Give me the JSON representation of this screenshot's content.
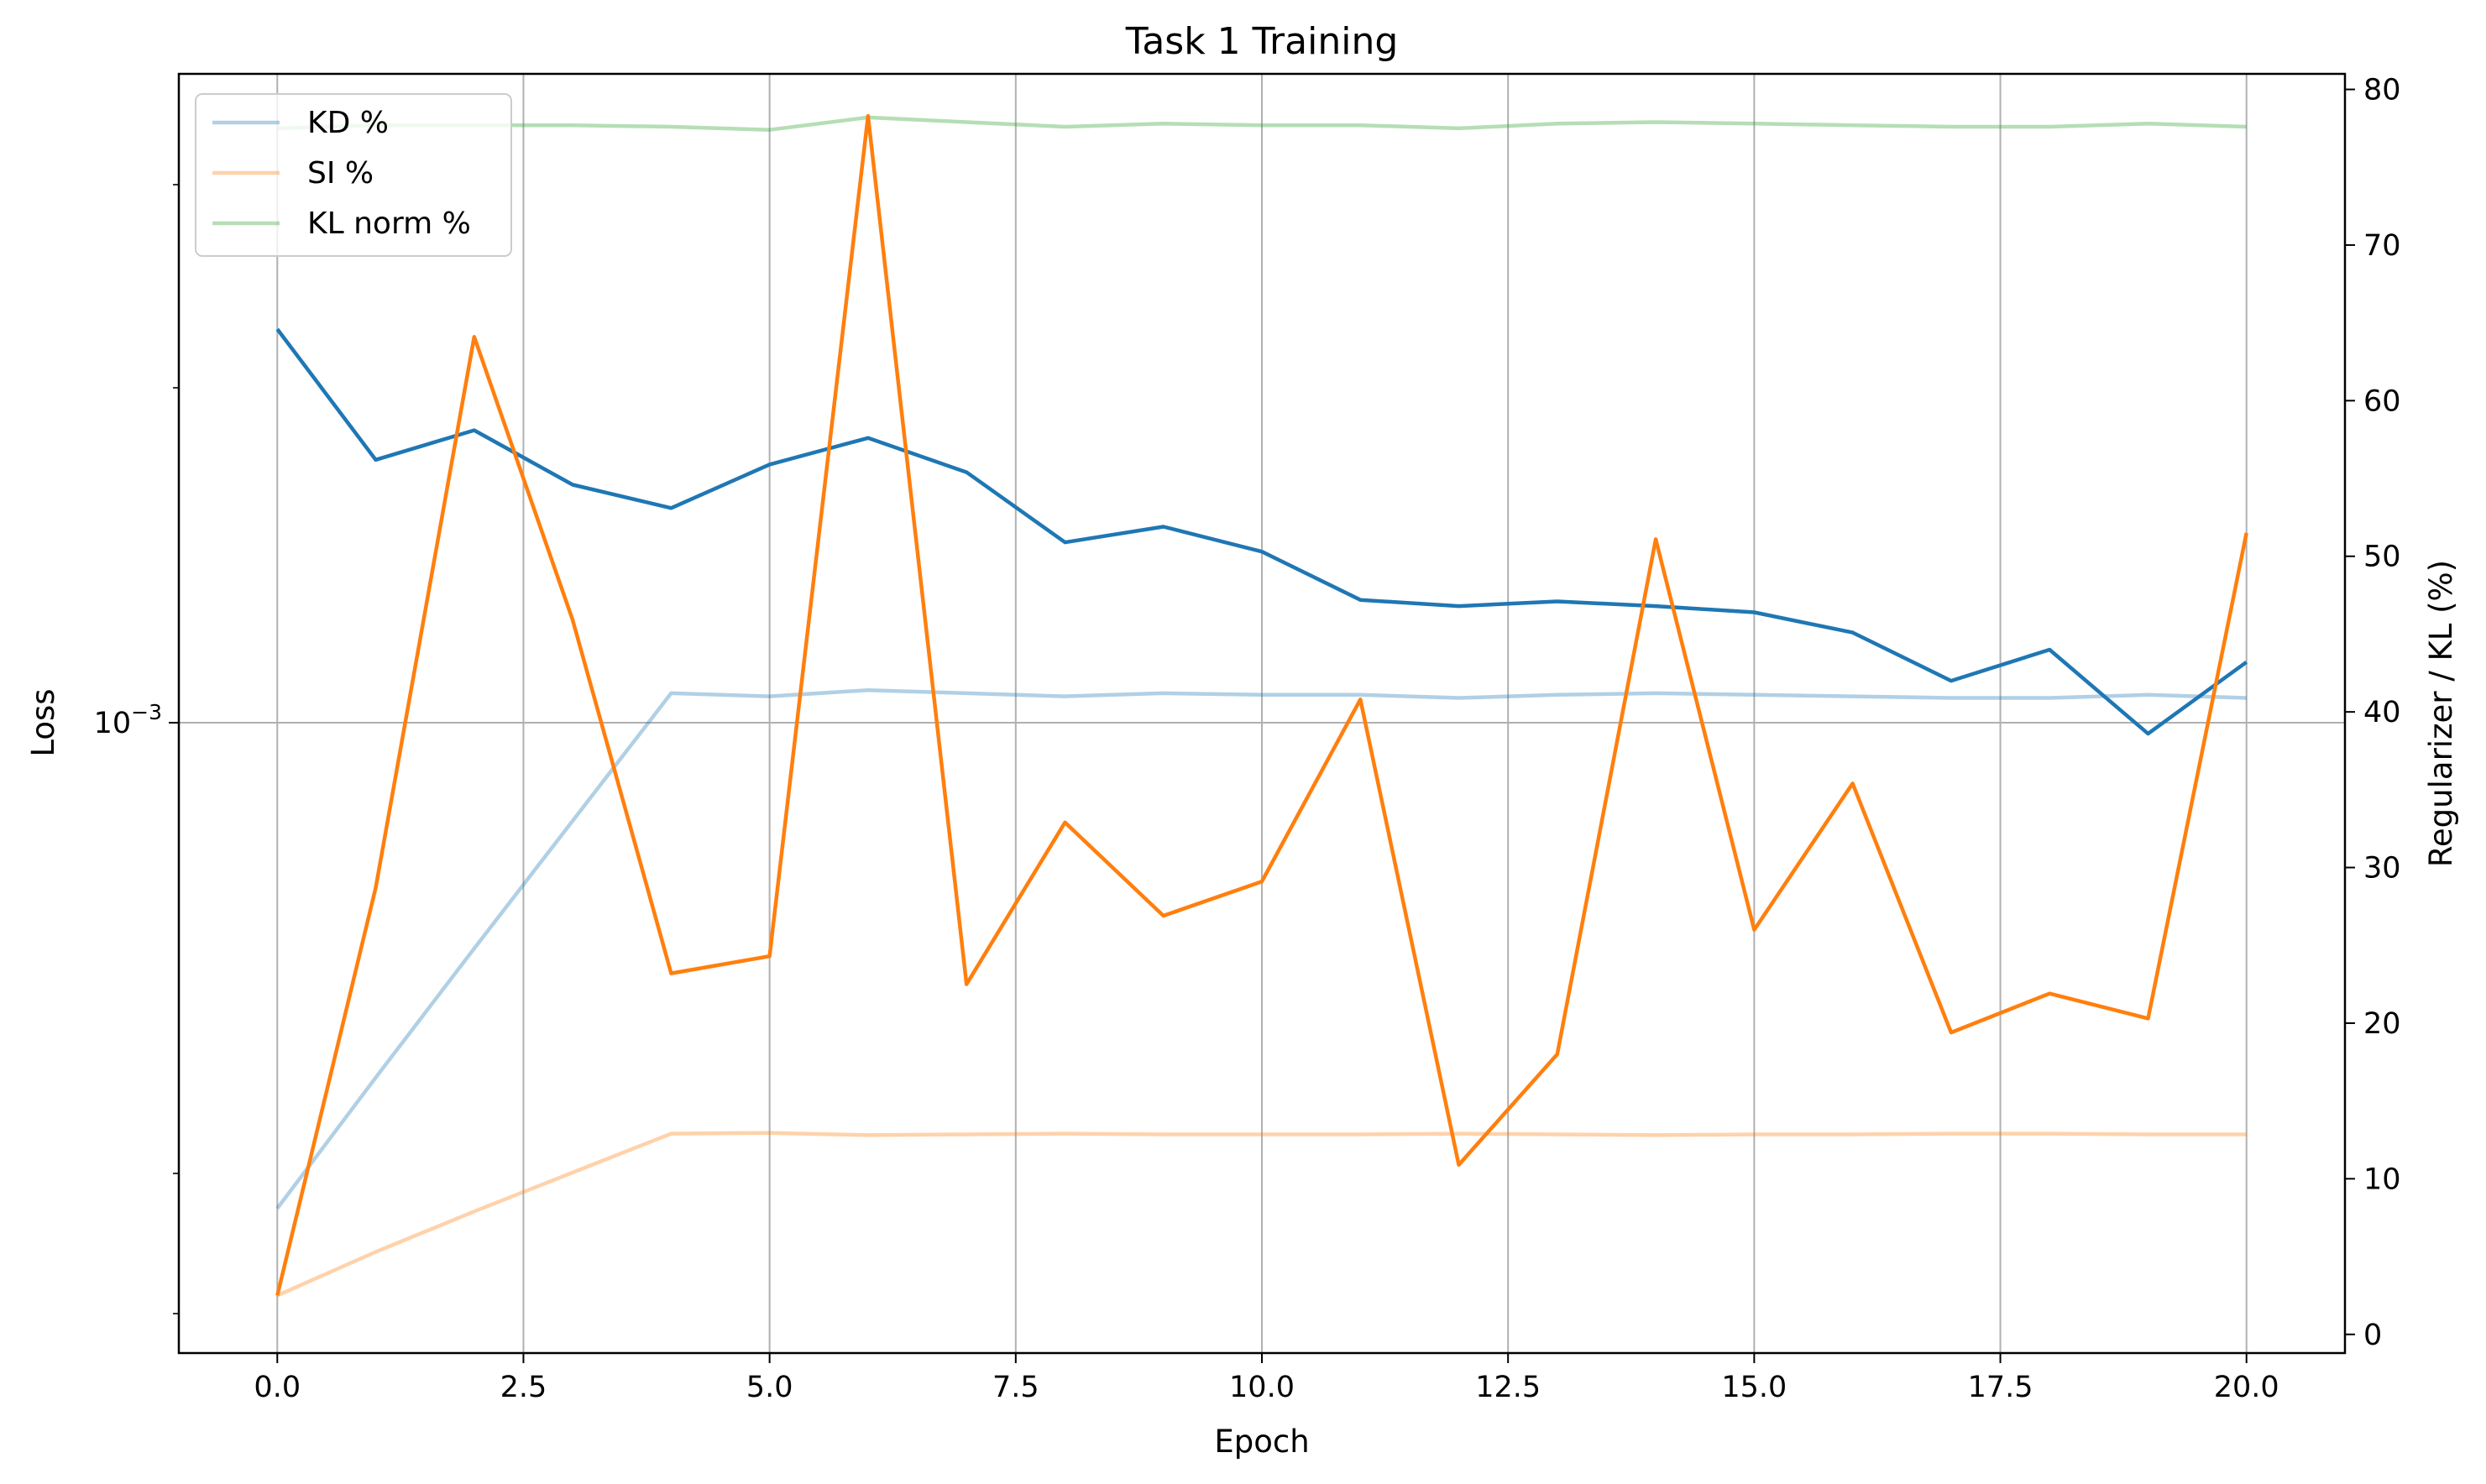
{
  "chart_data": {
    "type": "line",
    "title": "Task 1 Training",
    "xlabel": "Epoch",
    "ylabel_left": "Loss",
    "ylabel_right": "Regularizer / KL (%)",
    "left_axis_scale": "log",
    "left_axis_tick_label": "10^-3",
    "left_axis_tick_label_base": "10",
    "left_axis_tick_label_exp": "−3",
    "x": [
      0,
      1,
      2,
      3,
      4,
      5,
      6,
      7,
      8,
      9,
      10,
      11,
      12,
      13,
      14,
      15,
      16,
      17,
      18,
      19,
      20
    ],
    "xlim": [
      -1,
      21
    ],
    "x_ticks": [
      "0.0",
      "2.5",
      "5.0",
      "7.5",
      "10.0",
      "12.5",
      "15.0",
      "17.5",
      "20.0"
    ],
    "right_ylim": [
      -1.2,
      81
    ],
    "right_ticks": [
      "0",
      "10",
      "20",
      "30",
      "40",
      "50",
      "60",
      "70",
      "80"
    ],
    "grid": "x and left-axis major",
    "legend_position": "upper-left",
    "series": [
      {
        "name": "KD %",
        "axis": "right",
        "color": "#1f77b4",
        "alpha": 0.35,
        "values": [
          8.1,
          16.5,
          24.8,
          33.0,
          41.2,
          41.0,
          41.4,
          41.2,
          41.0,
          41.2,
          41.1,
          41.1,
          40.9,
          41.1,
          41.2,
          41.1,
          41.0,
          40.9,
          40.9,
          41.1,
          40.9
        ],
        "in_legend": true
      },
      {
        "name": "SI %",
        "axis": "right",
        "color": "#ff7f0e",
        "alpha": 0.35,
        "values": [
          2.5,
          5.3,
          7.9,
          10.4,
          12.9,
          12.95,
          12.8,
          12.85,
          12.9,
          12.85,
          12.85,
          12.85,
          12.9,
          12.85,
          12.8,
          12.85,
          12.85,
          12.9,
          12.9,
          12.85,
          12.85
        ],
        "in_legend": true
      },
      {
        "name": "KL norm %",
        "axis": "right",
        "color": "#2ca02c",
        "alpha": 0.35,
        "values": [
          77.5,
          77.7,
          77.7,
          77.7,
          77.6,
          77.4,
          78.2,
          77.9,
          77.6,
          77.8,
          77.7,
          77.7,
          77.5,
          77.8,
          77.9,
          77.8,
          77.7,
          77.6,
          77.6,
          77.8,
          77.6
        ],
        "in_legend": true
      },
      {
        "axis": "left",
        "color": "#1f77b4",
        "alpha": 1,
        "values_right_scale_equiv": [
          64.6,
          56.2,
          58.1,
          54.6,
          53.1,
          55.9,
          57.6,
          55.4,
          50.9,
          51.9,
          50.3,
          47.2,
          46.8,
          47.1,
          46.8,
          46.4,
          45.1,
          42.0,
          44.0,
          38.6,
          43.2
        ],
        "in_legend": false
      },
      {
        "axis": "right",
        "color": "#ff7f0e",
        "alpha": 1,
        "values": [
          2.5,
          28.7,
          64.1,
          45.9,
          23.2,
          24.3,
          78.3,
          22.5,
          32.9,
          26.9,
          29.1,
          40.8,
          10.9,
          18.0,
          51.1,
          26.0,
          35.4,
          19.4,
          21.9,
          20.3,
          51.5
        ],
        "in_legend": false
      }
    ]
  }
}
